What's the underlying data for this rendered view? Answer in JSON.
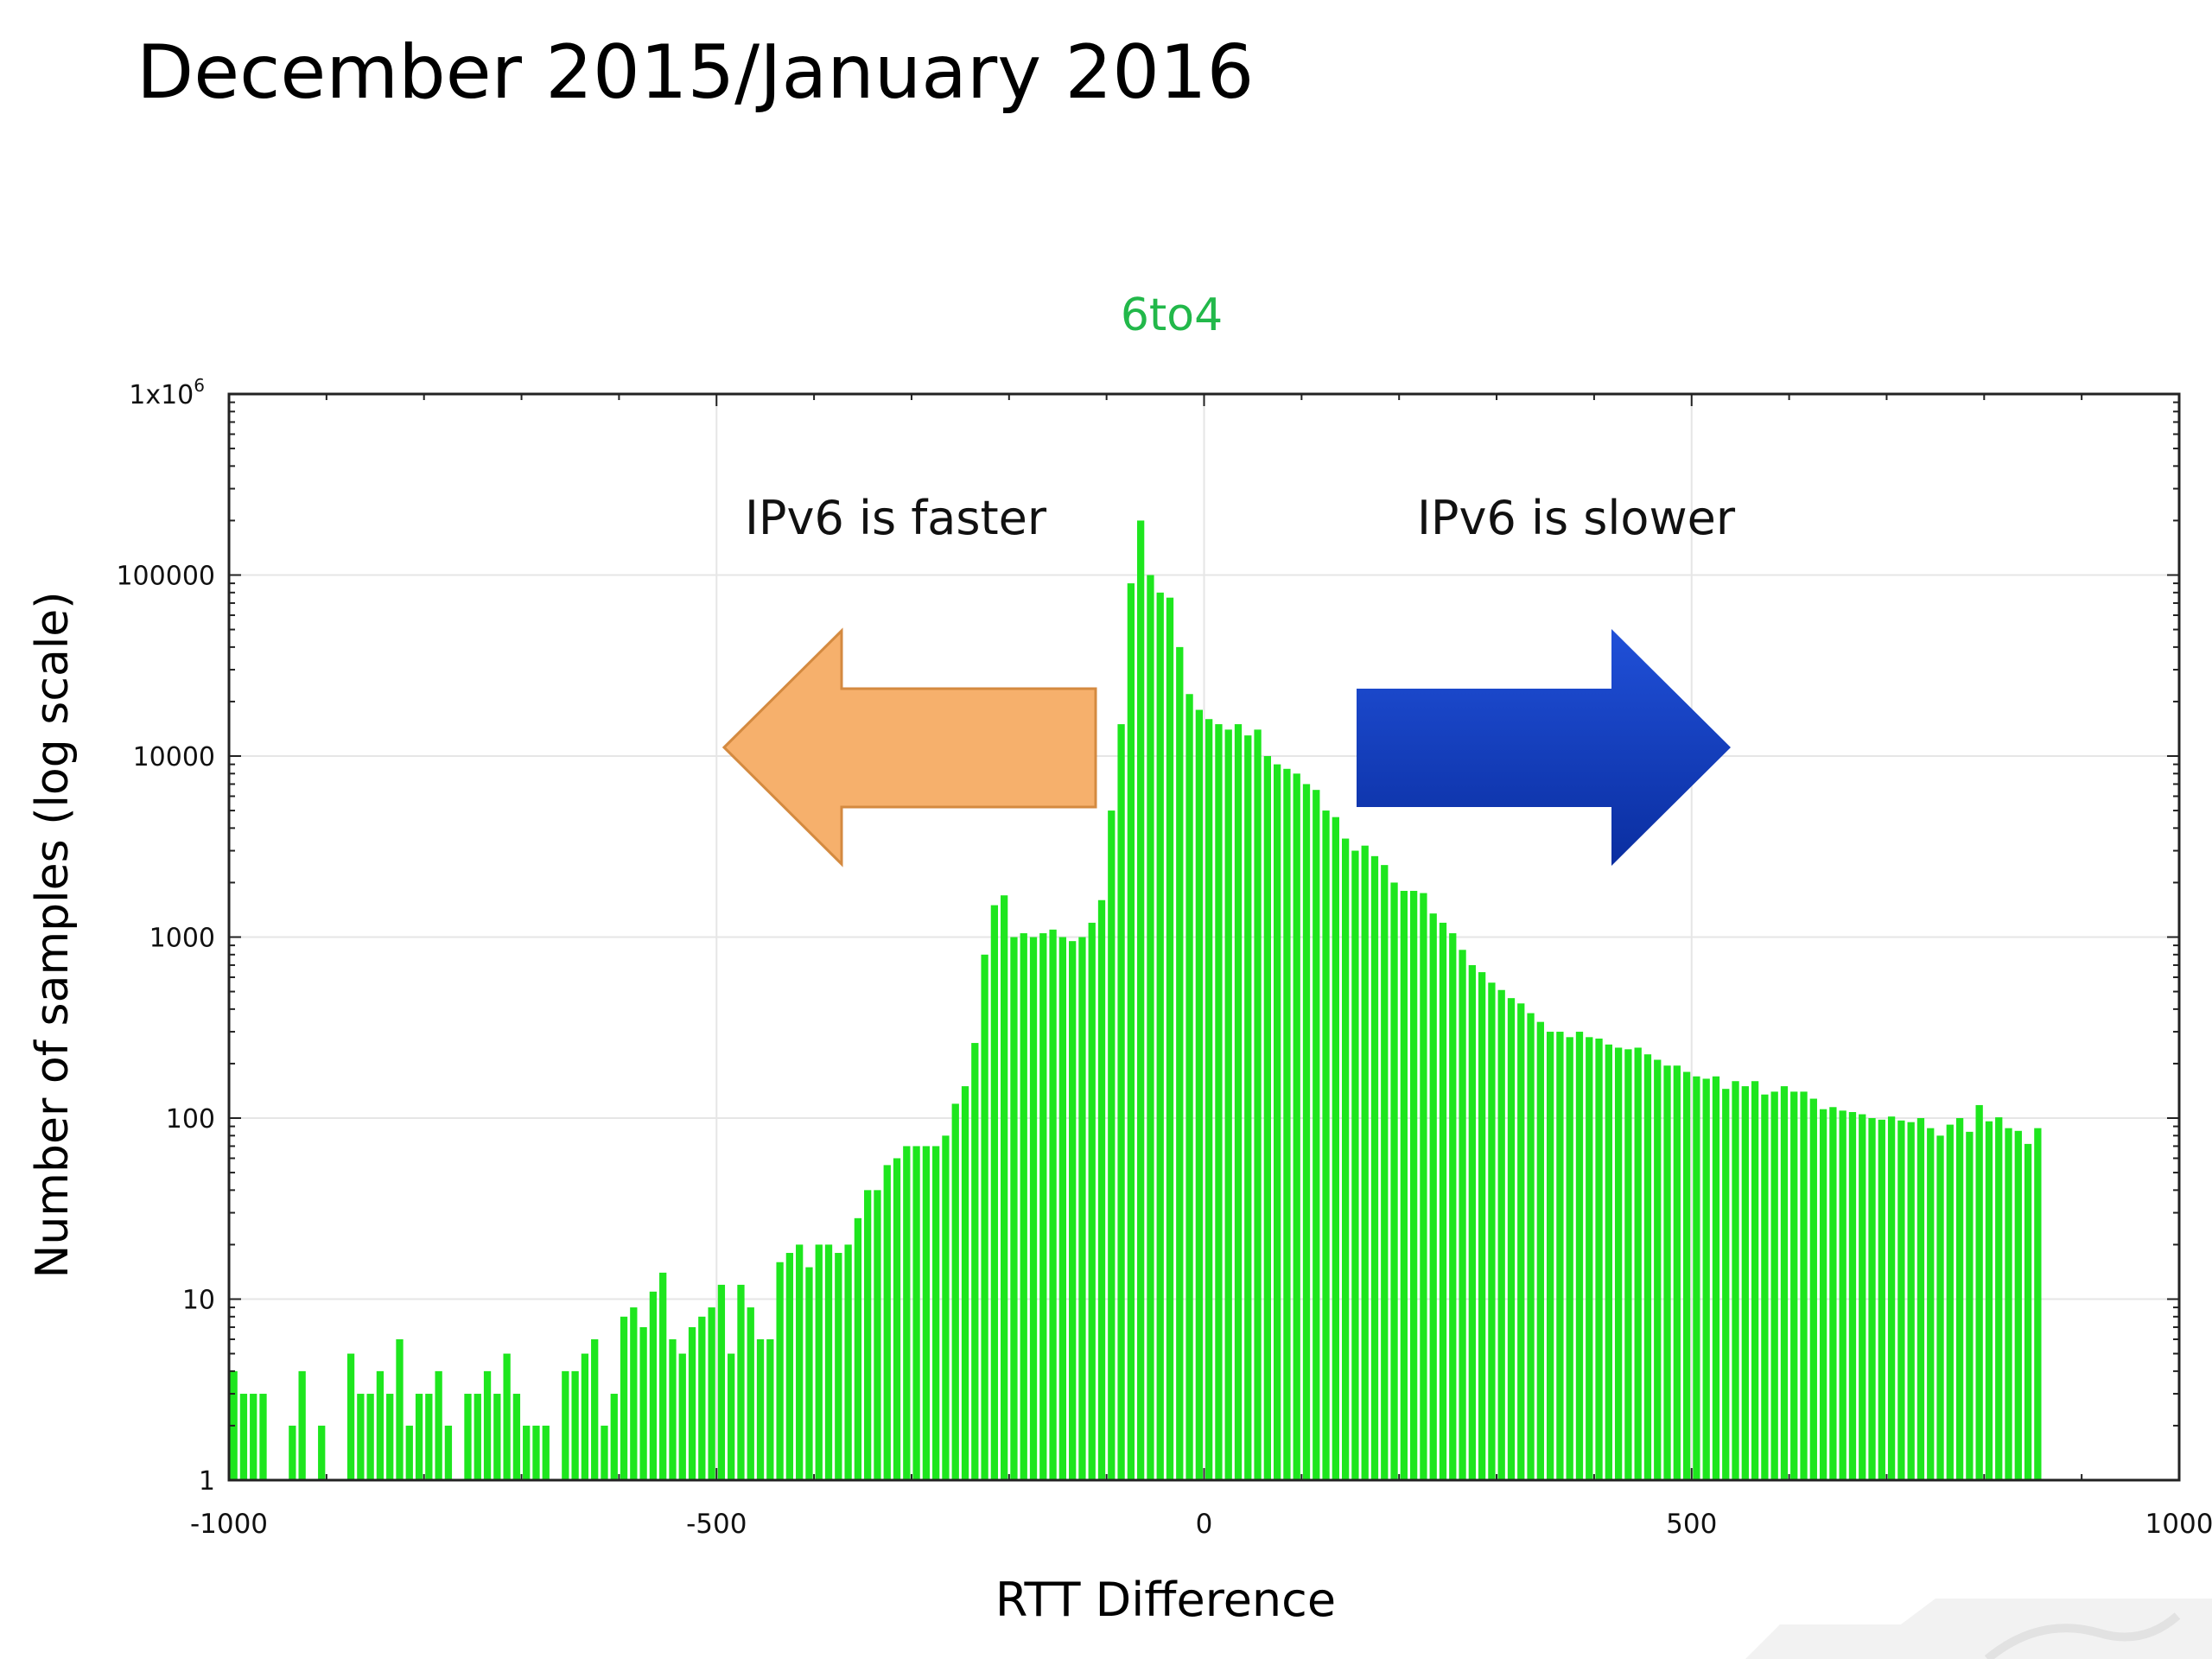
{
  "slide": {
    "title": "December 2015/January 2016"
  },
  "colors": {
    "bar": "#1ee61e",
    "title": "#22b84a",
    "left_arrow_fill": "#f6b06c",
    "left_arrow_stroke": "#d48a40",
    "right_arrow_top": "#2050d8",
    "right_arrow_bottom": "#0a2ea0"
  },
  "chart_data": {
    "type": "bar",
    "title": "6to4",
    "xlabel": "RTT Difference",
    "ylabel": "Number of samples (log scale)",
    "xlim": [
      -1000,
      1000
    ],
    "ylim": [
      1,
      1000000
    ],
    "yscale": "log",
    "grid": true,
    "x_ticks": [
      {
        "value": -1000,
        "label": "-1000"
      },
      {
        "value": -500,
        "label": "-500"
      },
      {
        "value": 0,
        "label": "0"
      },
      {
        "value": 500,
        "label": "500"
      },
      {
        "value": 1000,
        "label": "1000"
      }
    ],
    "y_ticks": [
      {
        "value": 1,
        "label": "1"
      },
      {
        "value": 10,
        "label": "10"
      },
      {
        "value": 100,
        "label": "100"
      },
      {
        "value": 1000,
        "label": "1000"
      },
      {
        "value": 10000,
        "label": "10000"
      },
      {
        "value": 100000,
        "label": "100000"
      },
      {
        "value": 1000000,
        "label": "1x10",
        "superscript": "6"
      }
    ],
    "bin_start": -1000,
    "bin_width": 10,
    "values": [
      4,
      3,
      3,
      3,
      1,
      1,
      2,
      4,
      1,
      2,
      1,
      1,
      5,
      3,
      3,
      4,
      3,
      6,
      2,
      3,
      3,
      4,
      2,
      1,
      3,
      3,
      4,
      3,
      5,
      3,
      2,
      2,
      2,
      1,
      4,
      4,
      5,
      6,
      2,
      3,
      8,
      9,
      7,
      11,
      14,
      6,
      5,
      7,
      8,
      9,
      12,
      5,
      12,
      9,
      6,
      6,
      16,
      18,
      20,
      15,
      20,
      20,
      18,
      20,
      28,
      40,
      40,
      55,
      60,
      70,
      70,
      70,
      70,
      80,
      120,
      150,
      260,
      800,
      1500,
      1700,
      1000,
      1050,
      1000,
      1050,
      1100,
      1000,
      950,
      1000,
      1200,
      1600,
      5000,
      15000,
      90000,
      200000,
      100000,
      80000,
      75000,
      40000,
      22000,
      18000,
      16000,
      15000,
      14000,
      15000,
      13000,
      14000,
      10000,
      9000,
      8500,
      8000,
      7000,
      6500,
      5000,
      4600,
      3500,
      3000,
      3200,
      2800,
      2500,
      2000,
      1800,
      1800,
      1750,
      1350,
      1200,
      1050,
      850,
      700,
      640,
      560,
      510,
      460,
      430,
      380,
      340,
      300,
      300,
      280,
      300,
      280,
      275,
      255,
      245,
      240,
      245,
      225,
      210,
      195,
      195,
      180,
      170,
      165,
      170,
      145,
      160,
      150,
      160,
      135,
      140,
      150,
      140,
      140,
      128,
      112,
      115,
      110,
      108,
      105,
      100,
      98,
      102,
      97,
      95,
      100,
      88,
      80,
      92,
      100,
      84,
      118,
      96,
      101,
      88,
      85,
      72,
      88
    ]
  },
  "annotations": {
    "left_label": "IPv6 is faster",
    "right_label": "IPv6 is slower"
  }
}
